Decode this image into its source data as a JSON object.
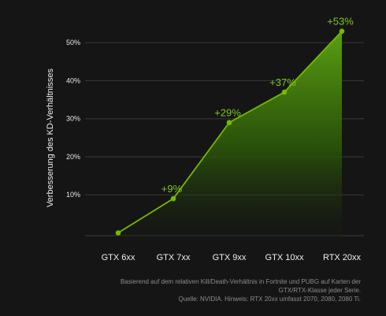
{
  "chart_data": {
    "type": "area",
    "categories": [
      "GTX 6xx",
      "GTX 7xx",
      "GTX 9xx",
      "GTX 10xx",
      "RTX 20xx"
    ],
    "series": [
      {
        "values": [
          0,
          9,
          29,
          37,
          53
        ],
        "data_labels": [
          "",
          "+9%",
          "+29%",
          "+37%",
          "+53%"
        ]
      }
    ],
    "ylabel": "Verbesserung des KD-Verhältnisses",
    "yticks": [
      10,
      20,
      30,
      40,
      50
    ],
    "ytick_labels": [
      "10%",
      "20%",
      "30%",
      "40%",
      "50%"
    ],
    "ylim": [
      -3,
      55
    ],
    "grid": true,
    "colors": {
      "background": "#151515",
      "line": "#76b900",
      "label": "#7dc81e",
      "fill_top": "#5aa010",
      "fill_bottom": "#151515"
    }
  },
  "footnote": {
    "line1": "Basierend auf dem relativen Kill/Death-Verhältnis in Fortnite und PUBG auf Karten der",
    "line2": "GTX/RTX-Klasse jeder Serie.",
    "line3": "Quelle: NVIDIA. Hinweis: RTX 20xx umfasst 2070, 2080, 2080 Ti."
  }
}
